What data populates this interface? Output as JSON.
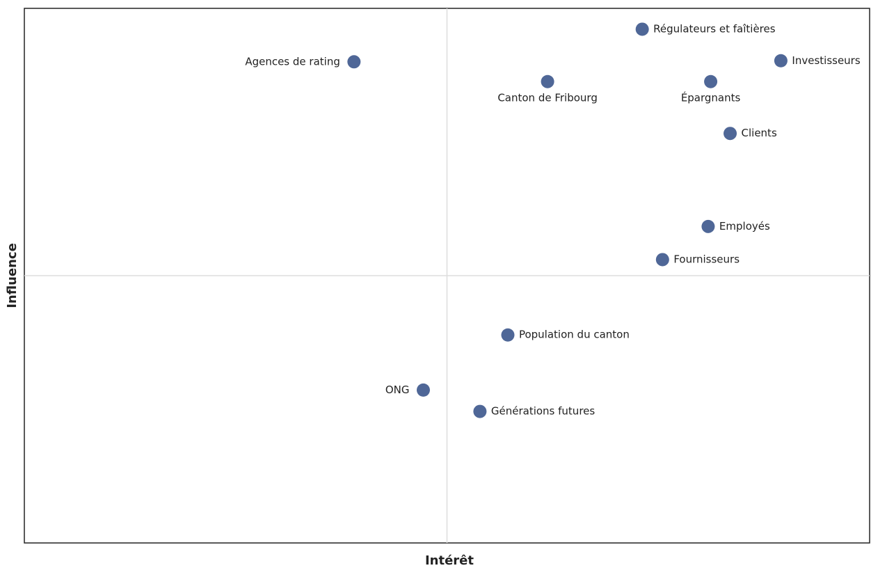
{
  "chart_data": {
    "type": "scatter",
    "x_label": "Intérêt",
    "y_label": "Influence",
    "labels": [
      "Régulateurs et faîtières",
      "Agences de rating",
      "Investisseurs",
      "Canton de Fribourg",
      "Épargnants",
      "Clients",
      "Employés",
      "Fournisseurs",
      "Population du canton",
      "ONG",
      "Générations futures"
    ],
    "x": [
      7.31,
      3.9,
      8.95,
      6.19,
      8.12,
      8.35,
      8.09,
      7.55,
      5.72,
      4.72,
      5.39
    ],
    "values": [
      9.61,
      9.0,
      9.02,
      8.63,
      8.63,
      7.66,
      5.92,
      5.3,
      3.89,
      2.86,
      2.46
    ],
    "color": "#4f6797",
    "xlim": [
      0,
      10
    ],
    "ylim": [
      0,
      10
    ]
  }
}
